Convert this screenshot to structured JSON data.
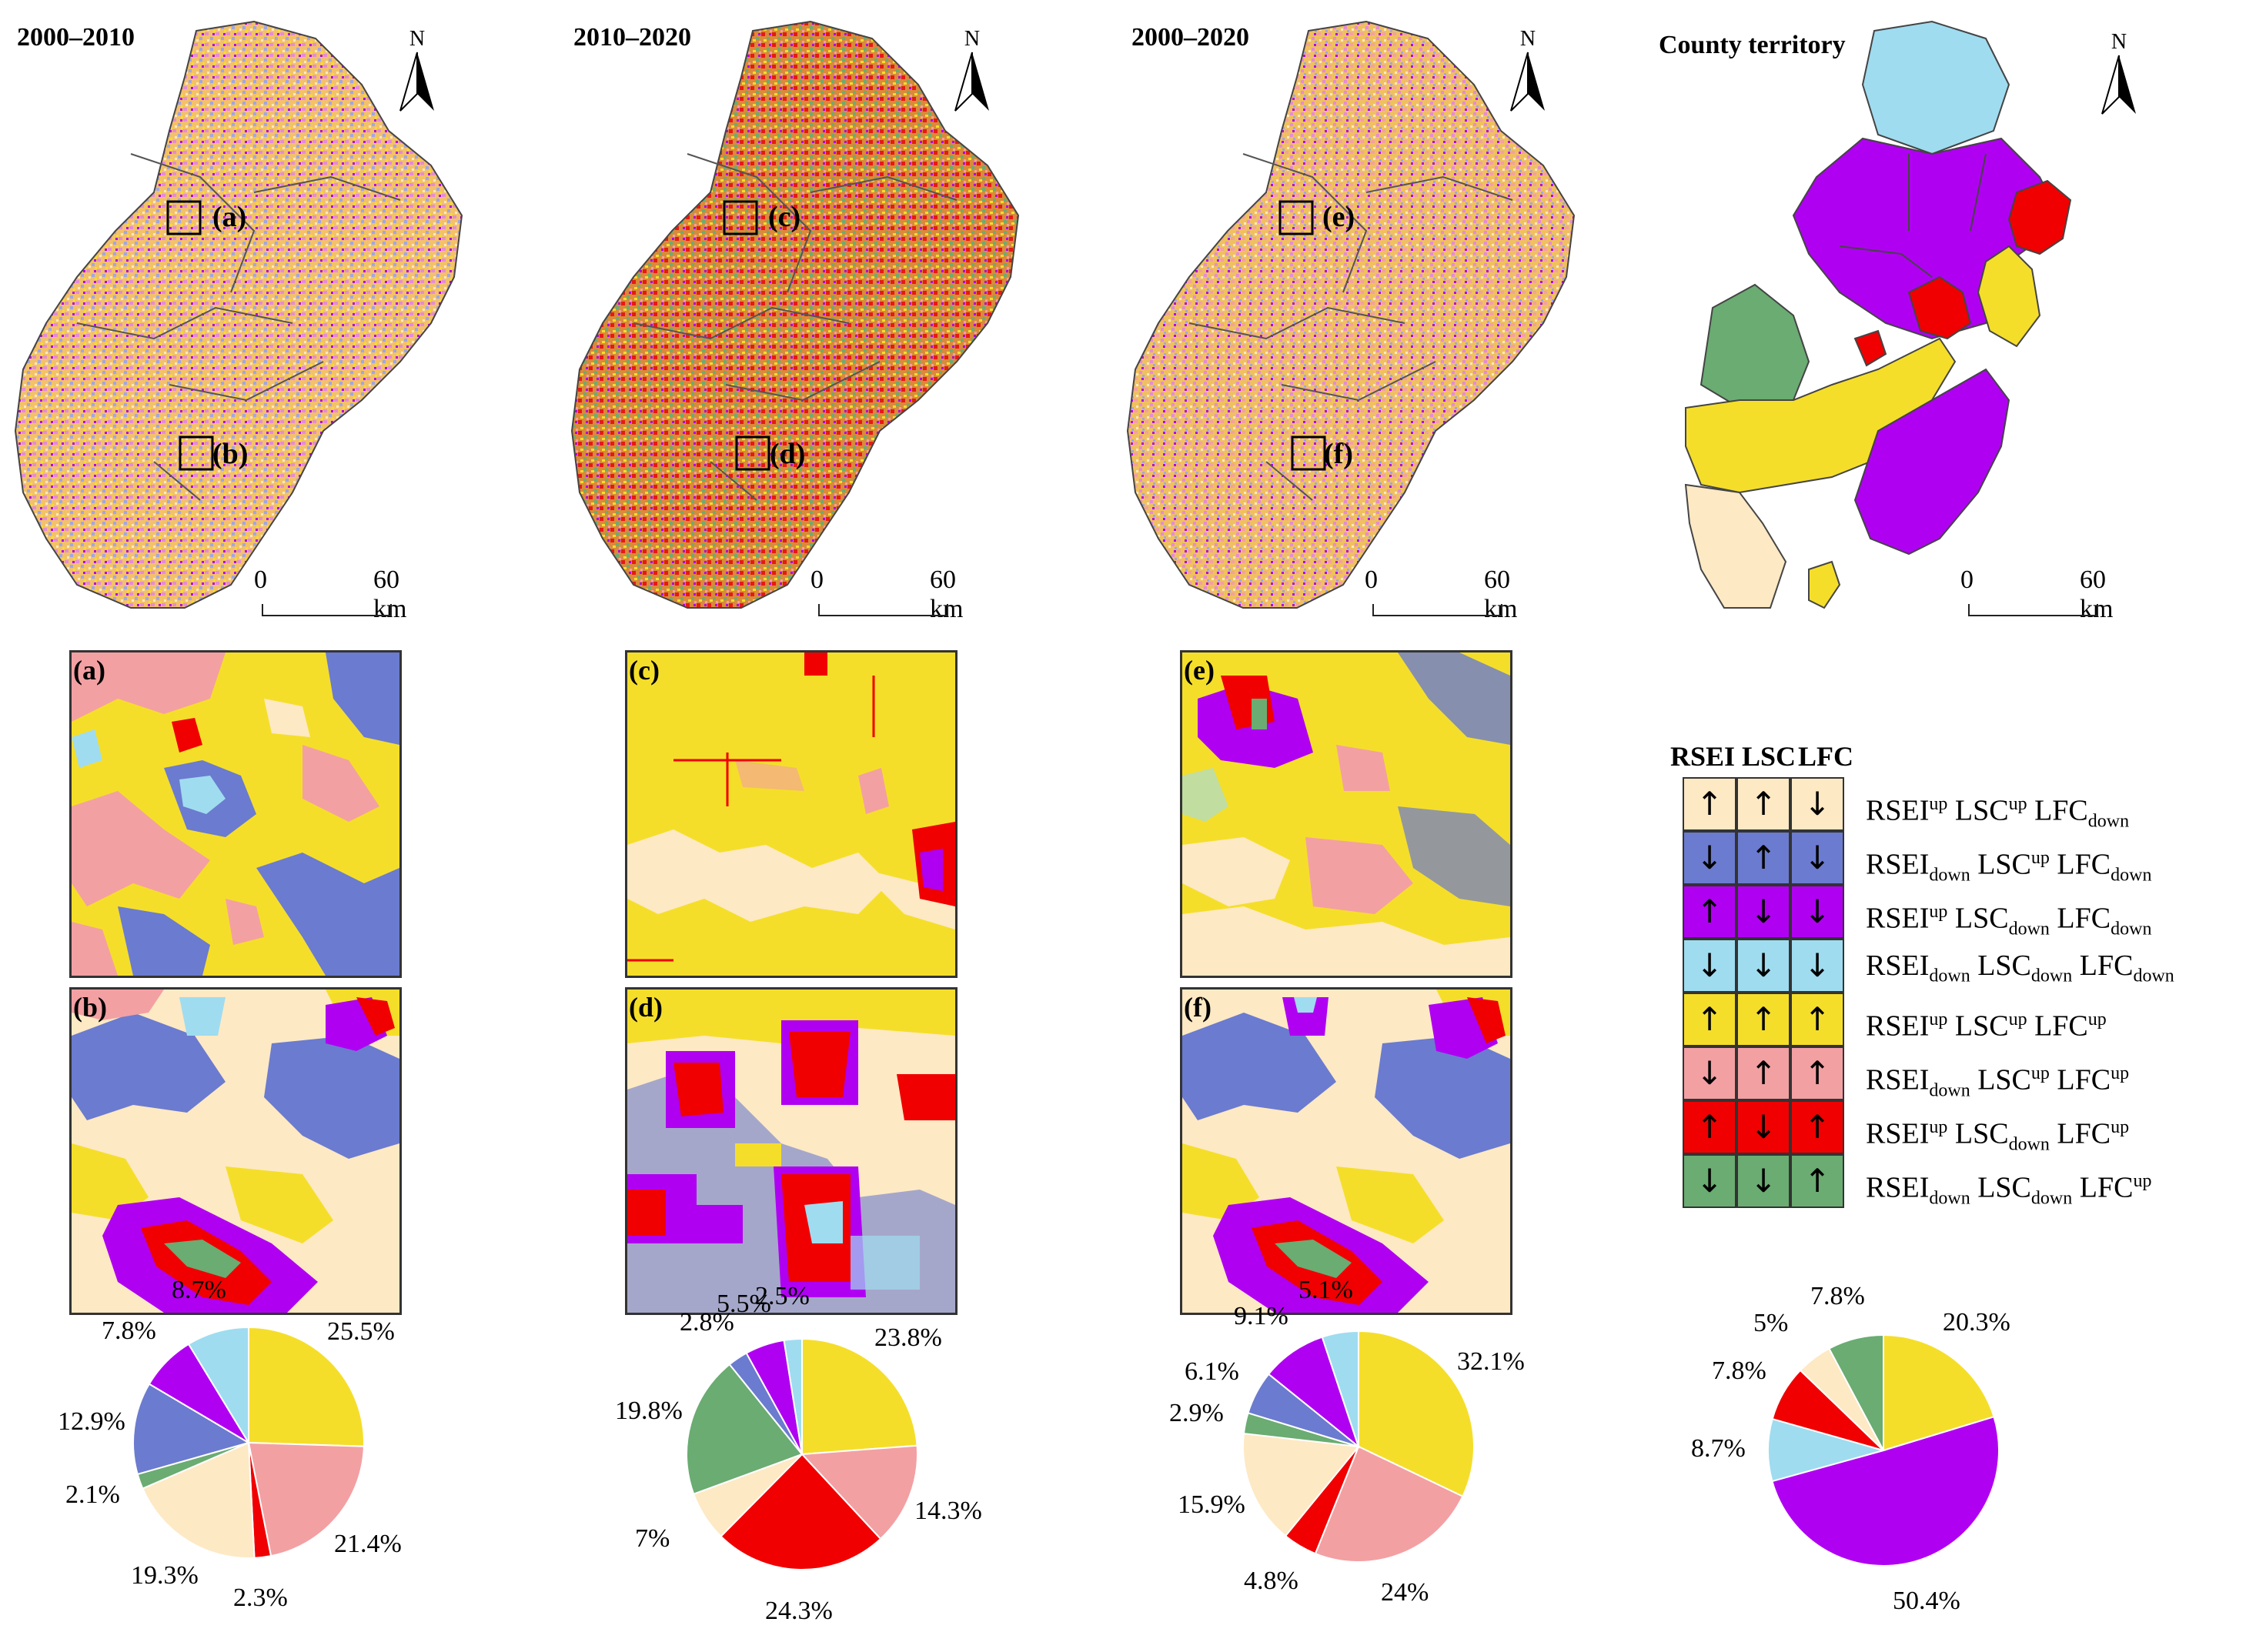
{
  "colors": {
    "c1": "#fde9c4",
    "c2": "#6b7bcf",
    "c3": "#b000f2",
    "c4": "#9fdcf0",
    "c5": "#f5de2a",
    "c6": "#f3a0a3",
    "c7": "#f00000",
    "c8": "#6aac72"
  },
  "panels": [
    {
      "title": "2000–2010",
      "insets": [
        "(a)",
        "(b)"
      ]
    },
    {
      "title": "2010–2020",
      "insets": [
        "(c)",
        "(d)"
      ]
    },
    {
      "title": "2000–2020",
      "insets": [
        "(e)",
        "(f)"
      ]
    },
    {
      "title": "County territory"
    }
  ],
  "north_label": "N",
  "scale": {
    "zero": "0",
    "max": "60 km"
  },
  "legend": {
    "header": [
      "RSEI",
      "LSC",
      "LFC"
    ],
    "rows": [
      {
        "arrows": [
          "↑",
          "↑",
          "↓"
        ],
        "rsei": "RSEI",
        "rsei_s": "up",
        "lsc": "LSC",
        "lsc_s": "up",
        "lfc": "LFC",
        "lfc_s": "down",
        "color": "c1"
      },
      {
        "arrows": [
          "↓",
          "↑",
          "↓"
        ],
        "rsei": "RSEI",
        "rsei_s": "down",
        "lsc": "LSC",
        "lsc_s": "up",
        "lfc": "LFC",
        "lfc_s": "down",
        "color": "c2"
      },
      {
        "arrows": [
          "↑",
          "↓",
          "↓"
        ],
        "rsei": "RSEI",
        "rsei_s": "up",
        "lsc": "LSC",
        "lsc_s": "down",
        "lfc": "LFC",
        "lfc_s": "down",
        "color": "c3"
      },
      {
        "arrows": [
          "↓",
          "↓",
          "↓"
        ],
        "rsei": "RSEI",
        "rsei_s": "down",
        "lsc": "LSC",
        "lsc_s": "down",
        "lfc": "LFC",
        "lfc_s": "down",
        "color": "c4"
      },
      {
        "arrows": [
          "↑",
          "↑",
          "↑"
        ],
        "rsei": "RSEI",
        "rsei_s": "up",
        "lsc": "LSC",
        "lsc_s": "up",
        "lfc": "LFC",
        "lfc_s": "up",
        "color": "c5"
      },
      {
        "arrows": [
          "↓",
          "↑",
          "↑"
        ],
        "rsei": "RSEI",
        "rsei_s": "down",
        "lsc": "LSC",
        "lsc_s": "up",
        "lfc": "LFC",
        "lfc_s": "up",
        "color": "c6"
      },
      {
        "arrows": [
          "↑",
          "↓",
          "↑"
        ],
        "rsei": "RSEI",
        "rsei_s": "up",
        "lsc": "LSC",
        "lsc_s": "down",
        "lfc": "LFC",
        "lfc_s": "up",
        "color": "c7"
      },
      {
        "arrows": [
          "↓",
          "↓",
          "↑"
        ],
        "rsei": "RSEI",
        "rsei_s": "down",
        "lsc": "LSC",
        "lsc_s": "down",
        "lfc": "LFC",
        "lfc_s": "up",
        "color": "c8"
      }
    ]
  },
  "chart_data": [
    {
      "type": "pie",
      "period": "2000–2010",
      "slices": [
        {
          "color": "c5",
          "value": 25.5,
          "label": "25.5%"
        },
        {
          "color": "c6",
          "value": 21.4,
          "label": "21.4%"
        },
        {
          "color": "c7",
          "value": 2.3,
          "label": "2.3%"
        },
        {
          "color": "c1",
          "value": 19.3,
          "label": "19.3%"
        },
        {
          "color": "c8",
          "value": 2.1,
          "label": "2.1%"
        },
        {
          "color": "c2",
          "value": 12.9,
          "label": "12.9%"
        },
        {
          "color": "c3",
          "value": 7.8,
          "label": "7.8%"
        },
        {
          "color": "c4",
          "value": 8.7,
          "label": "8.7%"
        }
      ]
    },
    {
      "type": "pie",
      "period": "2010–2020",
      "slices": [
        {
          "color": "c5",
          "value": 23.8,
          "label": "23.8%"
        },
        {
          "color": "c6",
          "value": 14.3,
          "label": "14.3%"
        },
        {
          "color": "c7",
          "value": 24.3,
          "label": "24.3%"
        },
        {
          "color": "c1",
          "value": 7,
          "label": "7%"
        },
        {
          "color": "c8",
          "value": 19.8,
          "label": "19.8%"
        },
        {
          "color": "c2",
          "value": 2.8,
          "label": "2.8%"
        },
        {
          "color": "c3",
          "value": 5.5,
          "label": "5.5%"
        },
        {
          "color": "c4",
          "value": 2.5,
          "label": "2.5%"
        }
      ]
    },
    {
      "type": "pie",
      "period": "2000–2020",
      "slices": [
        {
          "color": "c5",
          "value": 32.1,
          "label": "32.1%"
        },
        {
          "color": "c6",
          "value": 24,
          "label": "24%"
        },
        {
          "color": "c7",
          "value": 4.8,
          "label": "4.8%"
        },
        {
          "color": "c1",
          "value": 15.9,
          "label": "15.9%"
        },
        {
          "color": "c8",
          "value": 2.9,
          "label": "2.9%"
        },
        {
          "color": "c2",
          "value": 6.1,
          "label": "6.1%"
        },
        {
          "color": "c3",
          "value": 9.1,
          "label": "9.1%"
        },
        {
          "color": "c4",
          "value": 5.1,
          "label": "5.1%"
        }
      ]
    },
    {
      "type": "pie",
      "period": "County territory",
      "slices": [
        {
          "color": "c5",
          "value": 20.3,
          "label": "20.3%"
        },
        {
          "color": "c3",
          "value": 50.4,
          "label": "50.4%"
        },
        {
          "color": "c4",
          "value": 8.7,
          "label": "8.7%"
        },
        {
          "color": "c7",
          "value": 7.8,
          "label": "7.8%"
        },
        {
          "color": "c1",
          "value": 5,
          "label": "5%"
        },
        {
          "color": "c8",
          "value": 7.8,
          "label": "7.8%"
        }
      ]
    }
  ]
}
